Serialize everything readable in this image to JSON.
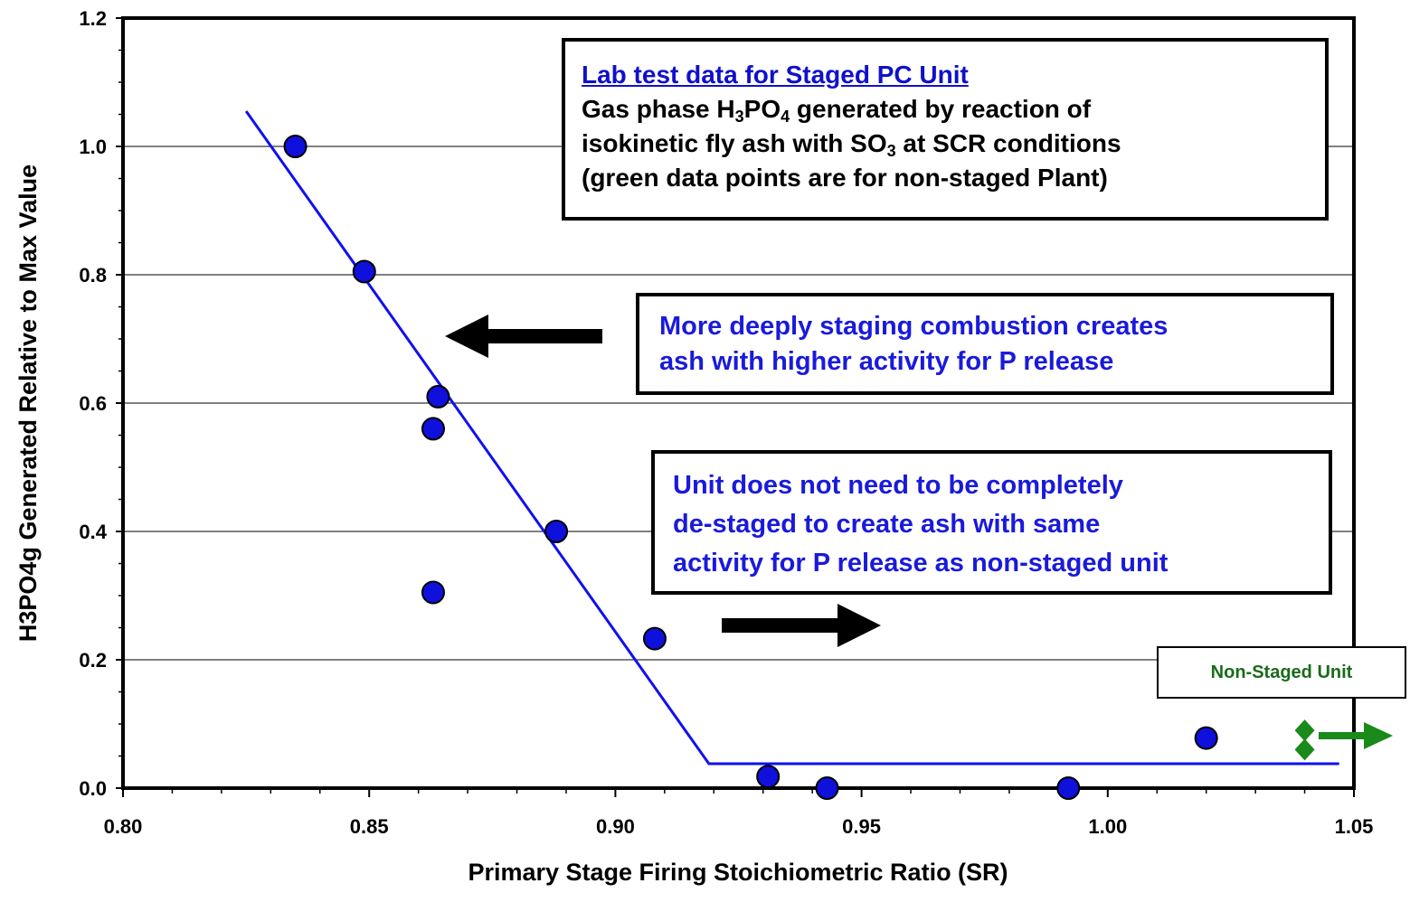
{
  "chart_data": {
    "type": "scatter",
    "xlabel": "Primary Stage Firing Stoichiometric Ratio (SR)",
    "ylabel": "H3PO4g Generated Relative to Max Value",
    "xlim": [
      0.8,
      1.05
    ],
    "ylim": [
      0.0,
      1.2
    ],
    "x_ticks": [
      "0.80",
      "0.85",
      "0.90",
      "0.95",
      "1.00",
      "1.05"
    ],
    "y_ticks": [
      "0.0",
      "0.2",
      "0.4",
      "0.6",
      "0.8",
      "1.0",
      "1.2"
    ],
    "grid": "horizontal",
    "series": [
      {
        "color": "#1010dd",
        "marker": "circle",
        "points": [
          [
            0.835,
            1.0
          ],
          [
            0.849,
            0.805
          ],
          [
            0.864,
            0.61
          ],
          [
            0.863,
            0.56
          ],
          [
            0.863,
            0.305
          ],
          [
            0.888,
            0.4
          ],
          [
            0.908,
            0.233
          ],
          [
            0.931,
            0.018
          ],
          [
            0.943,
            0.0
          ],
          [
            0.992,
            0.0
          ],
          [
            1.02,
            0.078
          ]
        ]
      },
      {
        "color": "#1a8a1a",
        "marker": "diamond",
        "points": [
          [
            1.04,
            0.09
          ],
          [
            1.04,
            0.06
          ]
        ]
      }
    ],
    "trendline": {
      "color": "#1010ee",
      "points": [
        [
          0.825,
          1.055
        ],
        [
          0.919,
          0.038
        ],
        [
          1.047,
          0.038
        ]
      ]
    },
    "colors": {
      "arrow": "#000000",
      "green_arrow": "#1a8a1a"
    }
  },
  "annotations": {
    "box1": {
      "title": "Lab test data for Staged PC Unit",
      "line1_a": "Gas phase H",
      "line1_sub1": "3",
      "line1_b": "PO",
      "line1_sub2": "4",
      "line1_c": " generated by reaction of",
      "line2_a": "isokinetic fly ash with SO",
      "line2_sub": "3",
      "line2_b": " at SCR conditions",
      "line3": "(green data points are for non-staged Plant)"
    },
    "box2": {
      "line1": "More deeply staging combustion creates",
      "line2": "ash with higher activity for P release"
    },
    "box3": {
      "line1": "Unit does not need to be completely",
      "line2": "de-staged to create ash with same",
      "line3": "activity for P release as non-staged unit"
    },
    "box4": "Non-Staged Unit"
  }
}
